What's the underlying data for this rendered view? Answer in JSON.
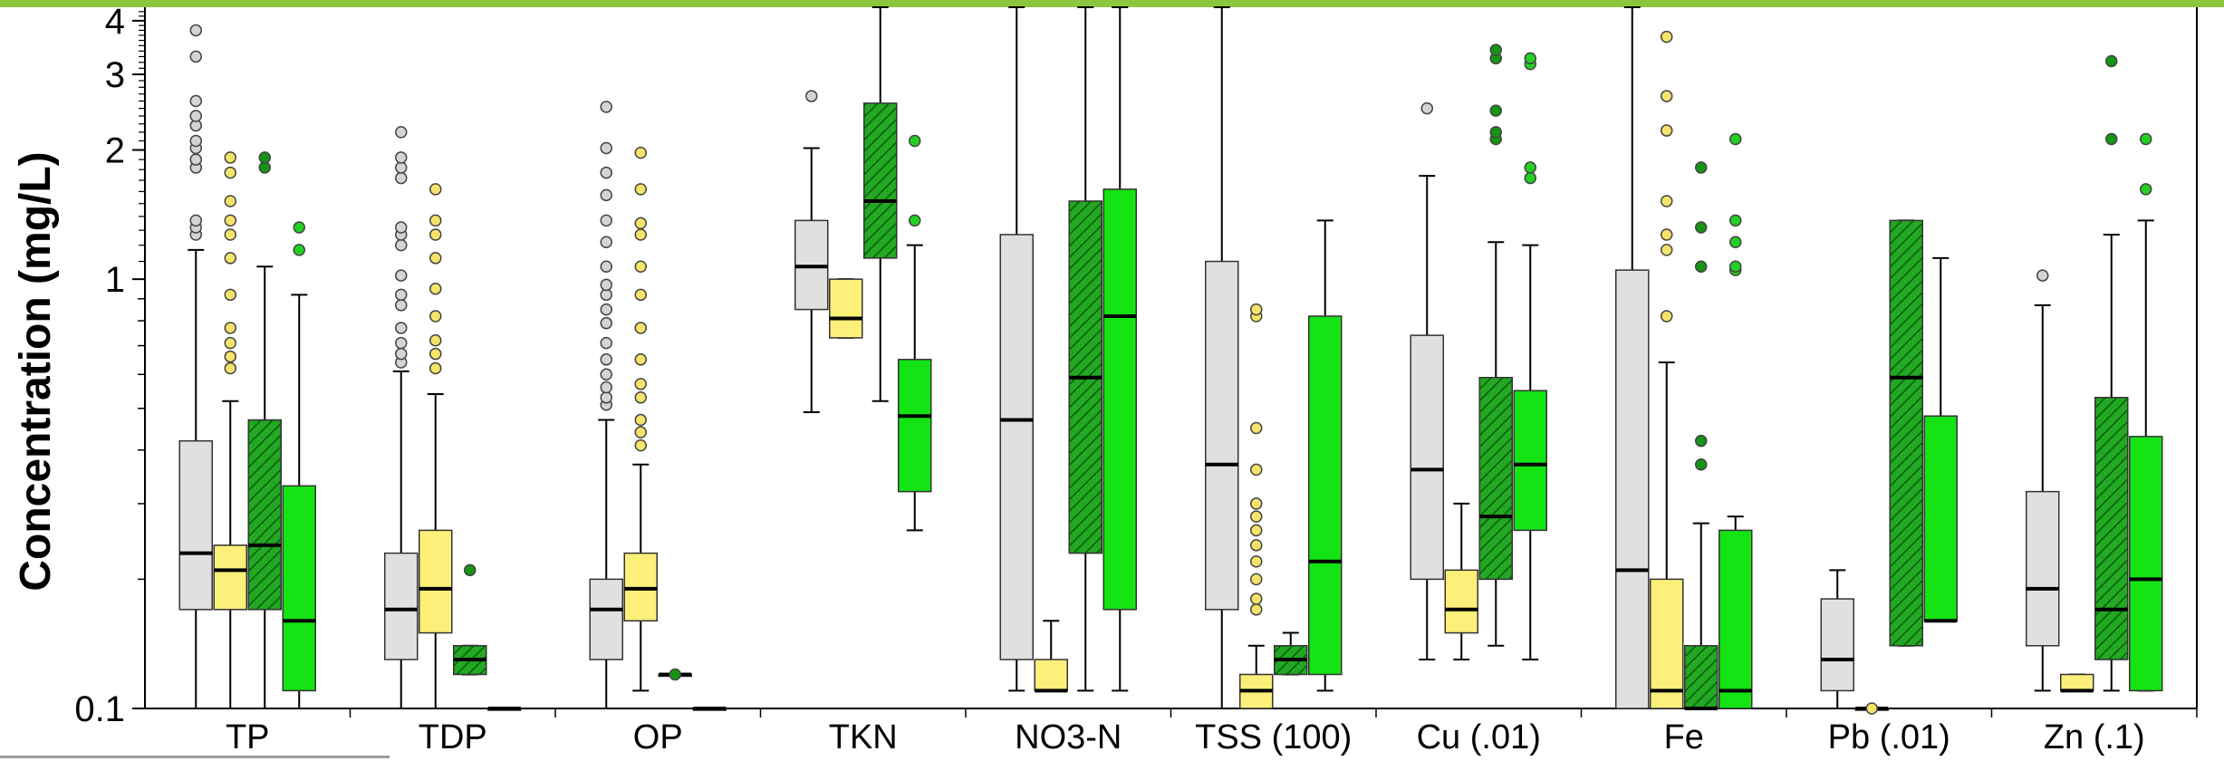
{
  "chart_data": {
    "type": "box",
    "ylabel": "Concentration (mg/L)",
    "yscale": "log",
    "ylim": [
      0.1,
      4.3
    ],
    "ytick_values": [
      0.1,
      1,
      2,
      3,
      4
    ],
    "ytick_labels": [
      "0.1",
      "1",
      "2",
      "3",
      "4"
    ],
    "grid": false,
    "legend": "none",
    "categories": [
      "TP",
      "TDP",
      "OP",
      "TKN",
      "NO3-N",
      "TSS (100)",
      "Cu (.01)",
      "Fe",
      "Pb (.01)",
      "Zn (.1)"
    ],
    "series": [
      {
        "style": "light-gray",
        "boxes": [
          {
            "category": "TP",
            "whisker_low": 0.1,
            "q1": 0.17,
            "median": 0.23,
            "q3": 0.42,
            "whisker_high": 1.17,
            "outliers": [
              1.27,
              1.32,
              1.37,
              1.82,
              1.9,
              2.02,
              2.1,
              2.28,
              2.4,
              2.6,
              3.3,
              3.8
            ]
          },
          {
            "category": "TDP",
            "whisker_low": 0.1,
            "q1": 0.13,
            "median": 0.17,
            "q3": 0.23,
            "whisker_high": 0.61,
            "outliers": [
              0.64,
              0.67,
              0.71,
              0.77,
              0.87,
              0.92,
              1.02,
              1.2,
              1.27,
              1.32,
              1.72,
              1.82,
              1.92,
              2.2
            ]
          },
          {
            "category": "OP",
            "whisker_low": 0.1,
            "q1": 0.13,
            "median": 0.17,
            "q3": 0.2,
            "whisker_high": 0.47,
            "outliers": [
              0.51,
              0.53,
              0.56,
              0.6,
              0.65,
              0.71,
              0.79,
              0.85,
              0.92,
              0.97,
              1.07,
              1.22,
              1.37,
              1.57,
              1.77,
              2.02,
              2.52
            ]
          },
          {
            "category": "TKN",
            "whisker_low": 0.49,
            "q1": 0.85,
            "median": 1.07,
            "q3": 1.37,
            "whisker_high": 2.02,
            "outliers": [
              2.67
            ]
          },
          {
            "category": "NO3-N",
            "whisker_low": 0.11,
            "q1": 0.13,
            "median": 0.47,
            "q3": 1.27,
            "whisker_high": 4.3,
            "outliers": []
          },
          {
            "category": "TSS (100)",
            "whisker_low": 0.1,
            "q1": 0.17,
            "median": 0.37,
            "q3": 1.1,
            "whisker_high": 4.3,
            "outliers": []
          },
          {
            "category": "Cu (.01)",
            "whisker_low": 0.13,
            "q1": 0.2,
            "median": 0.36,
            "q3": 0.74,
            "whisker_high": 1.74,
            "outliers": [
              2.5
            ]
          },
          {
            "category": "Fe",
            "whisker_low": 0.1,
            "q1": 0.1,
            "median": 0.21,
            "q3": 1.05,
            "whisker_high": 4.3,
            "outliers": []
          },
          {
            "category": "Pb (.01)",
            "whisker_low": 0.1,
            "q1": 0.11,
            "median": 0.13,
            "q3": 0.18,
            "whisker_high": 0.21,
            "outliers": []
          },
          {
            "category": "Zn (.1)",
            "whisker_low": 0.11,
            "q1": 0.14,
            "median": 0.19,
            "q3": 0.32,
            "whisker_high": 0.87,
            "outliers": [
              1.02
            ]
          }
        ]
      },
      {
        "style": "yellow",
        "boxes": [
          {
            "category": "TP",
            "whisker_low": 0.1,
            "q1": 0.17,
            "median": 0.21,
            "q3": 0.24,
            "whisker_high": 0.52,
            "outliers": [
              0.62,
              0.66,
              0.71,
              0.77,
              0.92,
              1.12,
              1.27,
              1.37,
              1.52,
              1.77,
              1.92
            ]
          },
          {
            "category": "TDP",
            "whisker_low": 0.1,
            "q1": 0.15,
            "median": 0.19,
            "q3": 0.26,
            "whisker_high": 0.54,
            "outliers": [
              0.62,
              0.67,
              0.72,
              0.82,
              0.95,
              1.12,
              1.27,
              1.37,
              1.62
            ]
          },
          {
            "category": "OP",
            "whisker_low": 0.11,
            "q1": 0.16,
            "median": 0.19,
            "q3": 0.23,
            "whisker_high": 0.37,
            "outliers": [
              0.41,
              0.44,
              0.47,
              0.53,
              0.57,
              0.65,
              0.77,
              0.92,
              1.07,
              1.27,
              1.35,
              1.62,
              1.97
            ]
          },
          {
            "category": "TKN",
            "whisker_low": 0.73,
            "q1": 0.73,
            "median": 0.81,
            "q3": 1.0,
            "whisker_high": 1.0,
            "outliers": []
          },
          {
            "category": "NO3-N",
            "whisker_low": 0.11,
            "q1": 0.11,
            "median": 0.11,
            "q3": 0.13,
            "whisker_high": 0.16,
            "outliers": []
          },
          {
            "category": "TSS (100)",
            "whisker_low": 0.1,
            "q1": 0.1,
            "median": 0.11,
            "q3": 0.12,
            "whisker_high": 0.14,
            "outliers": [
              0.17,
              0.18,
              0.2,
              0.22,
              0.24,
              0.26,
              0.28,
              0.3,
              0.36,
              0.45,
              0.82,
              0.85
            ]
          },
          {
            "category": "Cu (.01)",
            "whisker_low": 0.13,
            "q1": 0.15,
            "median": 0.17,
            "q3": 0.21,
            "whisker_high": 0.3,
            "outliers": []
          },
          {
            "category": "Fe",
            "whisker_low": 0.1,
            "q1": 0.1,
            "median": 0.11,
            "q3": 0.2,
            "whisker_high": 0.64,
            "outliers": [
              0.82,
              1.17,
              1.27,
              1.52,
              2.22,
              2.67,
              3.67
            ]
          },
          {
            "category": "Pb (.01)",
            "whisker_low": 0.1,
            "q1": 0.1,
            "median": 0.1,
            "q3": 0.1,
            "whisker_high": 0.1,
            "outliers": [
              0.1
            ]
          },
          {
            "category": "Zn (.1)",
            "whisker_low": 0.11,
            "q1": 0.11,
            "median": 0.11,
            "q3": 0.12,
            "whisker_high": 0.12,
            "outliers": []
          }
        ]
      },
      {
        "style": "green-hatched",
        "boxes": [
          {
            "category": "TP",
            "whisker_low": 0.1,
            "q1": 0.17,
            "median": 0.24,
            "q3": 0.47,
            "whisker_high": 1.07,
            "outliers": [
              1.82,
              1.92
            ]
          },
          {
            "category": "TDP",
            "whisker_low": 0.12,
            "q1": 0.12,
            "median": 0.13,
            "q3": 0.14,
            "whisker_high": 0.14,
            "outliers": [
              0.21
            ]
          },
          {
            "category": "OP",
            "whisker_low": 0.12,
            "q1": 0.12,
            "median": 0.12,
            "q3": 0.12,
            "whisker_high": 0.12,
            "outliers": [
              0.12
            ]
          },
          {
            "category": "TKN",
            "whisker_low": 0.52,
            "q1": 1.12,
            "median": 1.52,
            "q3": 2.57,
            "whisker_high": 4.3,
            "outliers": []
          },
          {
            "category": "NO3-N",
            "whisker_low": 0.11,
            "q1": 0.23,
            "median": 0.59,
            "q3": 1.52,
            "whisker_high": 4.3,
            "outliers": []
          },
          {
            "category": "TSS (100)",
            "whisker_low": 0.12,
            "q1": 0.12,
            "median": 0.13,
            "q3": 0.14,
            "whisker_high": 0.15,
            "outliers": []
          },
          {
            "category": "Cu (.01)",
            "whisker_low": 0.14,
            "q1": 0.2,
            "median": 0.28,
            "q3": 0.59,
            "whisker_high": 1.22,
            "outliers": [
              2.12,
              2.2,
              2.47,
              3.27,
              3.42
            ]
          },
          {
            "category": "Fe",
            "whisker_low": 0.1,
            "q1": 0.1,
            "median": 0.1,
            "q3": 0.14,
            "whisker_high": 0.27,
            "outliers": [
              0.37,
              0.42,
              1.07,
              1.32,
              1.82
            ]
          },
          {
            "category": "Pb (.01)",
            "whisker_low": 0.14,
            "q1": 0.14,
            "median": 0.59,
            "q3": 1.37,
            "whisker_high": 1.37,
            "outliers": []
          },
          {
            "category": "Zn (.1)",
            "whisker_low": 0.11,
            "q1": 0.13,
            "median": 0.17,
            "q3": 0.53,
            "whisker_high": 1.27,
            "outliers": [
              2.12,
              3.22
            ]
          }
        ]
      },
      {
        "style": "green",
        "boxes": [
          {
            "category": "TP",
            "whisker_low": 0.1,
            "q1": 0.11,
            "median": 0.16,
            "q3": 0.33,
            "whisker_high": 0.92,
            "outliers": [
              1.17,
              1.32
            ]
          },
          {
            "category": "TDP",
            "whisker_low": 0.1,
            "q1": 0.1,
            "median": 0.1,
            "q3": 0.1,
            "whisker_high": 0.1,
            "outliers": []
          },
          {
            "category": "OP",
            "whisker_low": 0.1,
            "q1": 0.1,
            "median": 0.1,
            "q3": 0.1,
            "whisker_high": 0.1,
            "outliers": []
          },
          {
            "category": "TKN",
            "whisker_low": 0.26,
            "q1": 0.32,
            "median": 0.48,
            "q3": 0.65,
            "whisker_high": 1.2,
            "outliers": [
              1.37,
              2.1
            ]
          },
          {
            "category": "NO3-N",
            "whisker_low": 0.11,
            "q1": 0.17,
            "median": 0.82,
            "q3": 1.62,
            "whisker_high": 4.3,
            "outliers": []
          },
          {
            "category": "TSS (100)",
            "whisker_low": 0.11,
            "q1": 0.12,
            "median": 0.22,
            "q3": 0.82,
            "whisker_high": 1.37,
            "outliers": []
          },
          {
            "category": "Cu (.01)",
            "whisker_low": 0.13,
            "q1": 0.26,
            "median": 0.37,
            "q3": 0.55,
            "whisker_high": 1.2,
            "outliers": [
              1.72,
              1.82,
              3.17,
              3.27
            ]
          },
          {
            "category": "Fe",
            "whisker_low": 0.1,
            "q1": 0.1,
            "median": 0.11,
            "q3": 0.26,
            "whisker_high": 0.28,
            "outliers": [
              1.05,
              1.07,
              1.22,
              1.37,
              2.12
            ]
          },
          {
            "category": "Pb (.01)",
            "whisker_low": 0.16,
            "q1": 0.16,
            "median": 0.16,
            "q3": 0.48,
            "whisker_high": 1.12,
            "outliers": []
          },
          {
            "category": "Zn (.1)",
            "whisker_low": 0.11,
            "q1": 0.11,
            "median": 0.2,
            "q3": 0.43,
            "whisker_high": 1.37,
            "outliers": [
              1.62,
              2.12
            ]
          }
        ]
      }
    ]
  },
  "colors": {
    "light_gray": "#e0e0e0",
    "yellow": "#fdf07a",
    "green_hatched_fill": "#22a822",
    "green_hatched_line": "#0e5a0e",
    "green": "#14e314",
    "outlier_gray": "#d4d4d4",
    "outlier_yellow": "#f5e469",
    "outlier_green_dark": "#149614",
    "outlier_green": "#22d022",
    "top_rule": "#8cc63f"
  }
}
